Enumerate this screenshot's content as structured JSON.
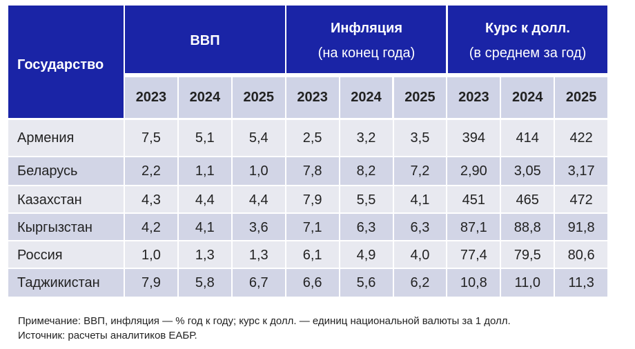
{
  "chart_data": {
    "type": "table",
    "header": {
      "state": "Государство",
      "groups": [
        {
          "title": "ВВП",
          "subtitle": ""
        },
        {
          "title": "Инфляция",
          "subtitle": "(на конец года)"
        },
        {
          "title": "Курс к долл.",
          "subtitle": "(в среднем за год)"
        }
      ],
      "years": [
        "2023",
        "2024",
        "2025",
        "2023",
        "2024",
        "2025",
        "2023",
        "2024",
        "2025"
      ]
    },
    "rows": [
      {
        "name": "Армения",
        "values": [
          "7,5",
          "5,1",
          "5,4",
          "2,5",
          "3,2",
          "3,5",
          "394",
          "414",
          "422"
        ]
      },
      {
        "name": "Беларусь",
        "values": [
          "2,2",
          "1,1",
          "1,0",
          "7,8",
          "8,2",
          "7,2",
          "2,90",
          "3,05",
          "3,17"
        ]
      },
      {
        "name": "Казахстан",
        "values": [
          "4,3",
          "4,4",
          "4,4",
          "7,9",
          "5,5",
          "4,1",
          "451",
          "465",
          "472"
        ]
      },
      {
        "name": "Кыргызстан",
        "values": [
          "4,2",
          "4,1",
          "3,6",
          "7,1",
          "6,3",
          "6,3",
          "87,1",
          "88,8",
          "91,8"
        ]
      },
      {
        "name": "Россия",
        "values": [
          "1,0",
          "1,3",
          "1,3",
          "6,1",
          "4,9",
          "4,0",
          "77,4",
          "79,5",
          "80,6"
        ]
      },
      {
        "name": "Таджикистан",
        "values": [
          "7,9",
          "5,8",
          "6,7",
          "6,6",
          "5,6",
          "6,2",
          "10,8",
          "11,0",
          "11,3"
        ]
      }
    ]
  },
  "notes": {
    "note": "Примечание: ВВП, инфляция — % год к году; курс к долл. — единиц национальной валюты за 1 долл.",
    "source": "Источник: расчеты аналитиков ЕАБР."
  },
  "colors": {
    "header_bg": "#1a24a6",
    "year_bg": "#cfd3e6",
    "row_light": "#e8e9f0",
    "row_dark": "#d2d5e6"
  }
}
